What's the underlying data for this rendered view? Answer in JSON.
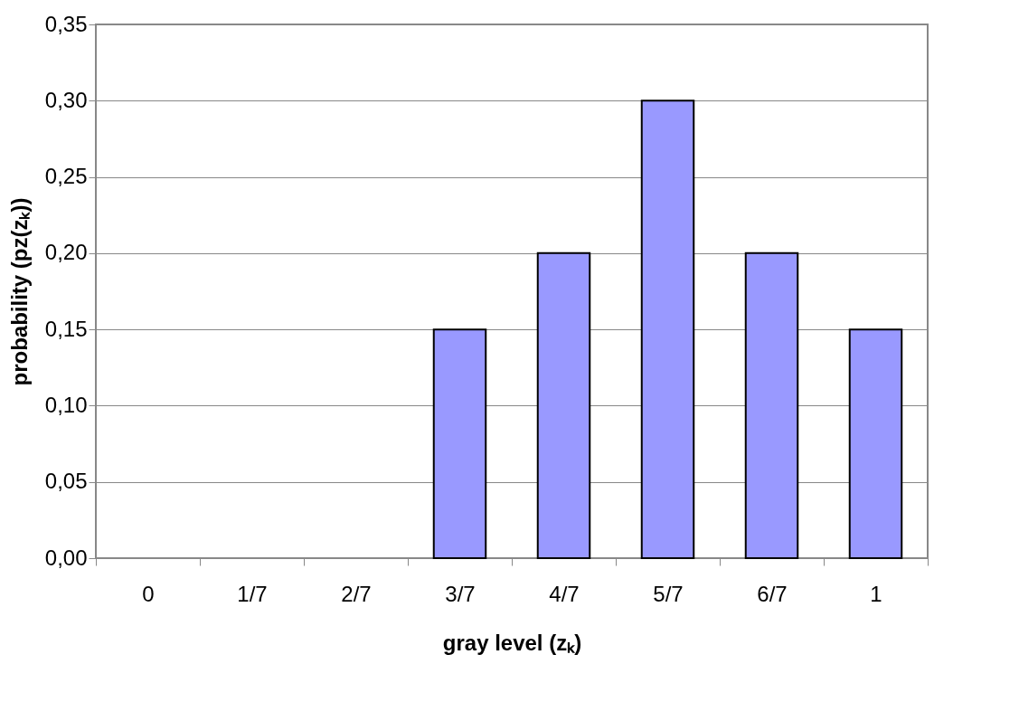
{
  "chart_data": {
    "type": "bar",
    "xlabel": "gray level (zₖ)",
    "ylabel": "probability (pz(zₖ))",
    "categories": [
      "0",
      "1/7",
      "2/7",
      "3/7",
      "4/7",
      "5/7",
      "6/7",
      "1"
    ],
    "values": [
      0,
      0,
      0,
      0.15,
      0.2,
      0.3,
      0.2,
      0.15
    ],
    "color": "#9999ff",
    "ylim": [
      0,
      0.35
    ],
    "yticks": [
      {
        "value": 0,
        "label": "0,00"
      },
      {
        "value": 0.05,
        "label": "0,05"
      },
      {
        "value": 0.1,
        "label": "0,10"
      },
      {
        "value": 0.15,
        "label": "0,15"
      },
      {
        "value": 0.2,
        "label": "0,20"
      },
      {
        "value": 0.25,
        "label": "0,25"
      },
      {
        "value": 0.3,
        "label": "0,30"
      },
      {
        "value": 0.35,
        "label": "0,35"
      }
    ],
    "grid": "y"
  }
}
